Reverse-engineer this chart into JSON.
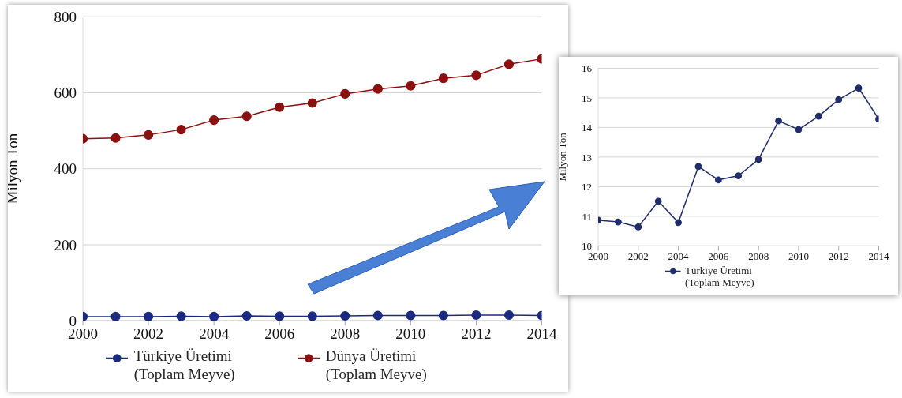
{
  "chart_data": [
    {
      "type": "line",
      "ylabel": "Milyon Ton",
      "x": [
        2000,
        2001,
        2002,
        2003,
        2004,
        2005,
        2006,
        2007,
        2008,
        2009,
        2010,
        2011,
        2012,
        2013,
        2014
      ],
      "xlim": [
        2000,
        2014
      ],
      "xticks": [
        2000,
        2002,
        2004,
        2006,
        2008,
        2010,
        2012,
        2014
      ],
      "ylim": [
        0,
        800
      ],
      "yticks": [
        0,
        200,
        400,
        600,
        800
      ],
      "grid": "y",
      "legend": "bottom",
      "marker": "circle",
      "line_style": "solid",
      "series": [
        {
          "name": "Türkiye Üretimi (Toplam Meyve)",
          "color": "#1a2a80",
          "values": [
            11,
            11,
            11,
            12,
            11,
            13,
            12,
            12,
            13,
            14,
            14,
            14,
            15,
            15,
            14
          ]
        },
        {
          "name": "Dünya Üretimi (Toplam Meyve)",
          "color": "#8b1010",
          "values": [
            479,
            481,
            489,
            503,
            528,
            538,
            562,
            573,
            597,
            610,
            618,
            638,
            646,
            675,
            689
          ]
        }
      ]
    },
    {
      "type": "line",
      "ylabel": "Milyon Ton",
      "x": [
        2000,
        2001,
        2002,
        2003,
        2004,
        2005,
        2006,
        2007,
        2008,
        2009,
        2010,
        2011,
        2012,
        2013,
        2014
      ],
      "xlim": [
        2000,
        2014
      ],
      "xticks": [
        2000,
        2002,
        2004,
        2006,
        2008,
        2010,
        2012,
        2014
      ],
      "ylim": [
        10,
        16
      ],
      "yticks": [
        10,
        11,
        12,
        13,
        14,
        15,
        16
      ],
      "grid": "y",
      "legend": "bottom",
      "marker": "circle",
      "line_style": "solid",
      "series": [
        {
          "name": "Türkiye Üretimi (Toplam Meyve)",
          "color": "#1f2d6b",
          "values": [
            10.87,
            10.81,
            10.64,
            11.51,
            10.79,
            12.68,
            12.23,
            12.37,
            12.92,
            14.22,
            13.93,
            14.38,
            14.94,
            15.33,
            14.28
          ]
        }
      ]
    }
  ]
}
